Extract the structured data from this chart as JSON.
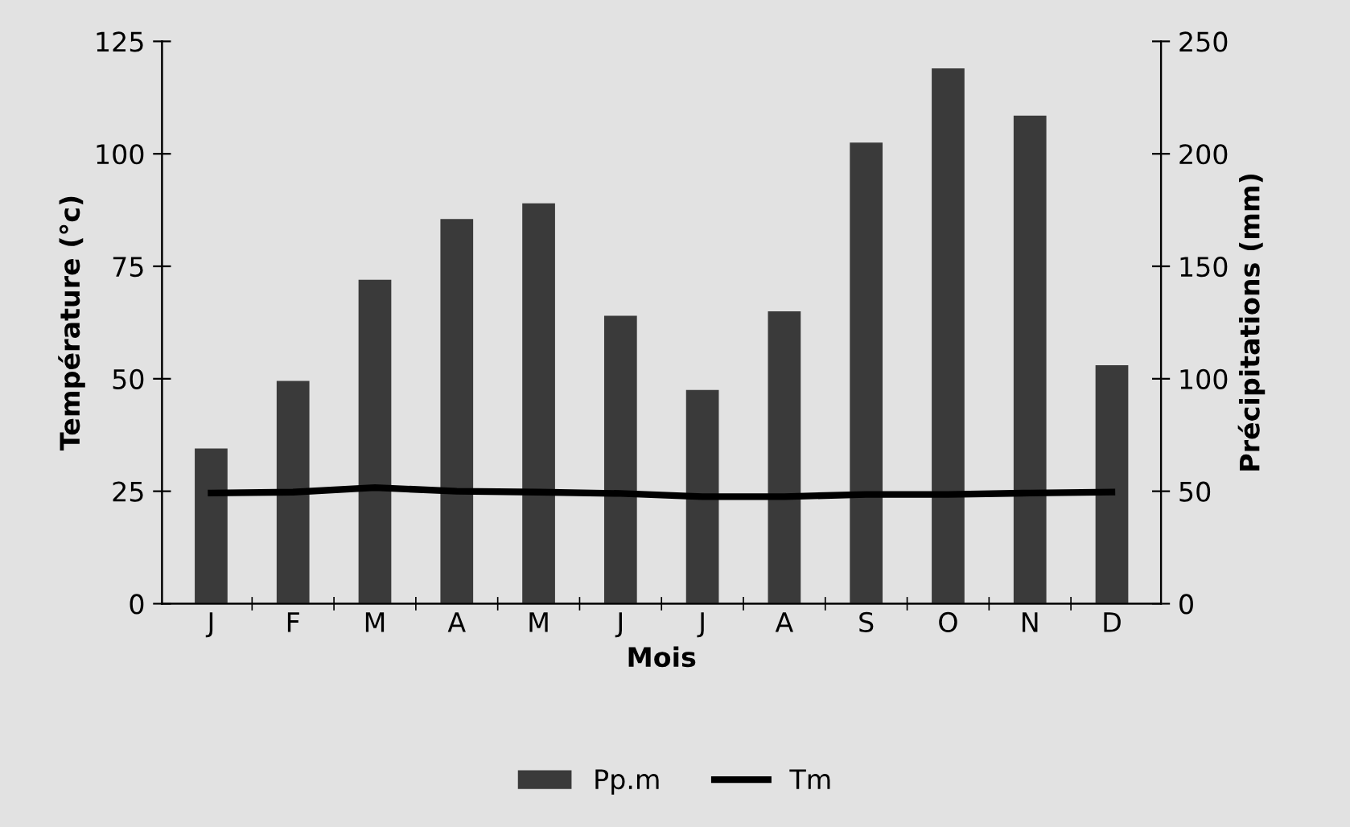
{
  "chart_data": {
    "type": "bar",
    "xlabel": "Mois",
    "ylabel": "Température (°c)",
    "y2label": "Précipitations (mm)",
    "categories": [
      "J",
      "F",
      "M",
      "A",
      "M",
      "J",
      "J",
      "A",
      "S",
      "O",
      "N",
      "D"
    ],
    "series": [
      {
        "name": "Pp.m",
        "axis": "y2",
        "color": "#3a3a3a",
        "values": [
          69,
          99,
          144,
          171,
          178,
          128,
          95,
          130,
          205,
          238,
          217,
          106
        ]
      },
      {
        "name": "Tm",
        "type": "line",
        "axis": "y",
        "color": "#000000",
        "values": [
          24.6,
          24.8,
          25.8,
          25,
          24.8,
          24.5,
          23.8,
          23.8,
          24.3,
          24.3,
          24.6,
          24.8
        ]
      }
    ],
    "ylim": [
      0,
      125
    ],
    "yticks": [
      0,
      25,
      50,
      75,
      100,
      125
    ],
    "y2lim": [
      0,
      250
    ],
    "y2ticks": [
      0,
      50,
      100,
      150,
      200,
      250
    ],
    "grid": false,
    "legend": "bottom"
  }
}
